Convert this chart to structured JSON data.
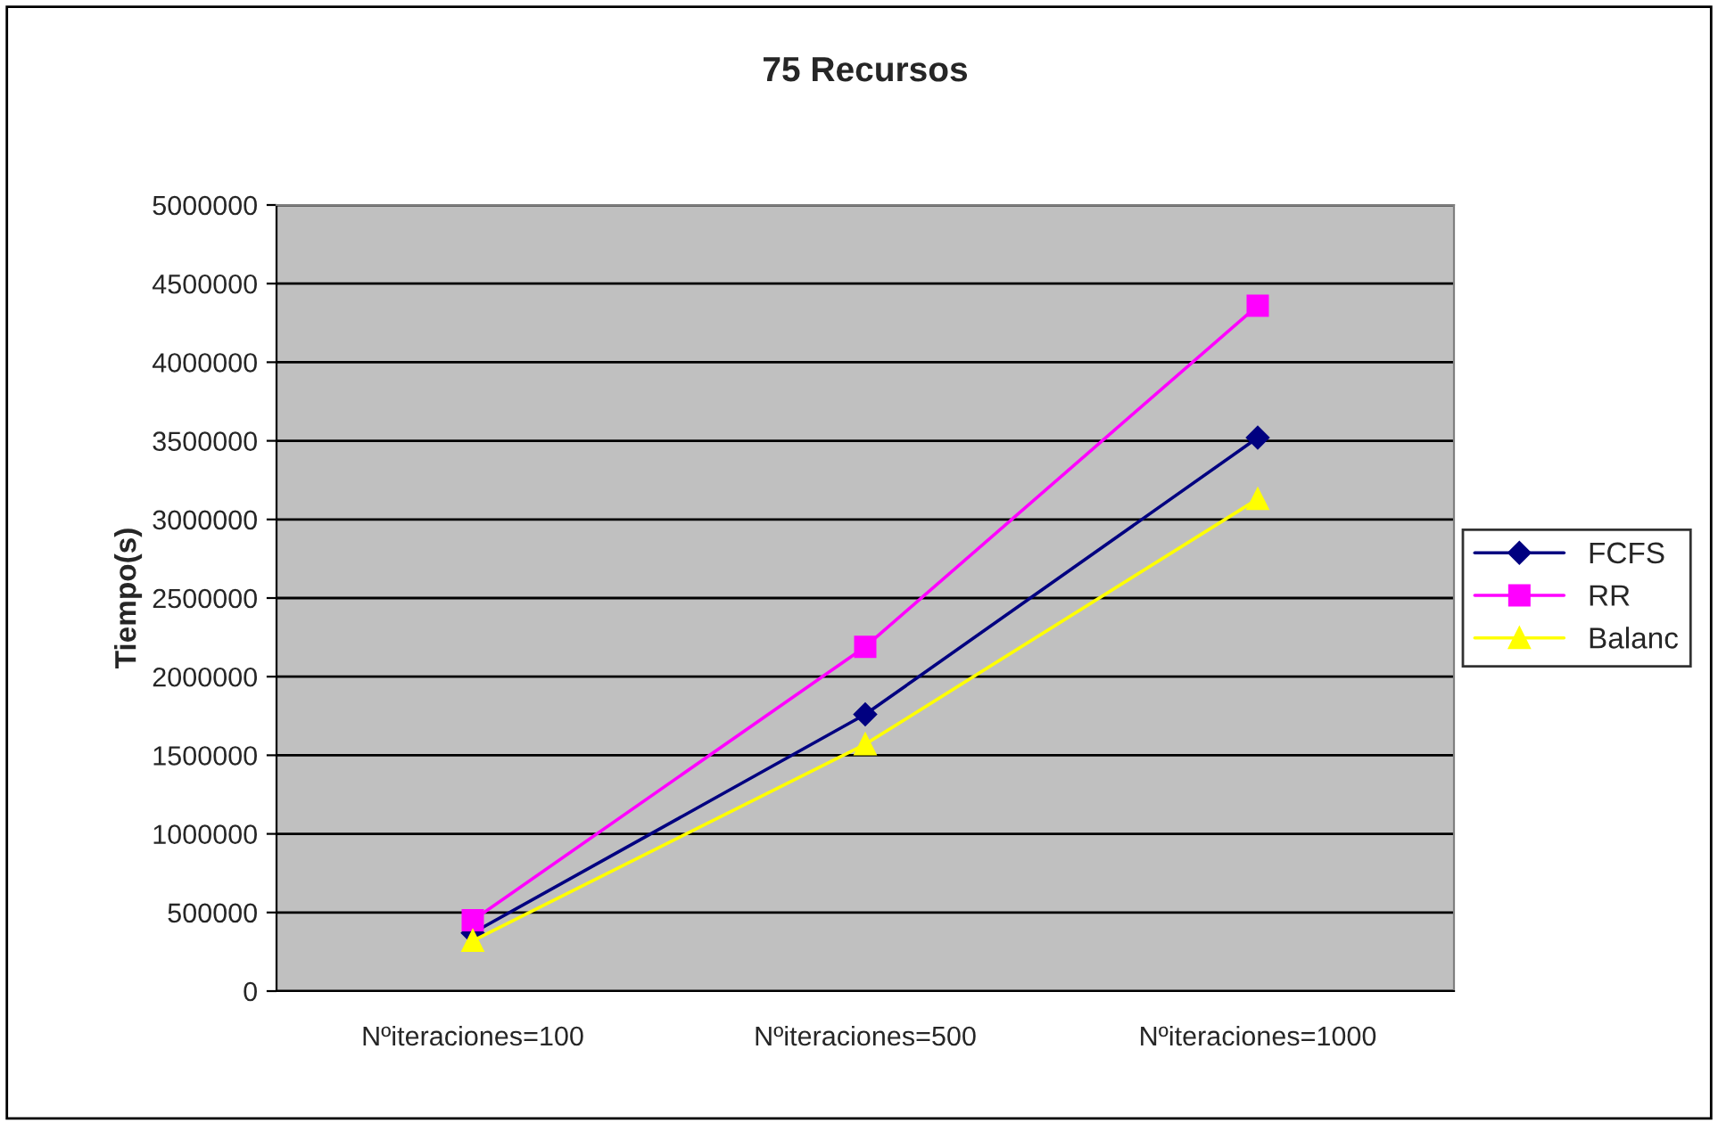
{
  "chart_data": {
    "type": "line",
    "title": "75 Recursos",
    "ylabel": "Tiempo(s)",
    "categories": [
      "Nºiteraciones=100",
      "Nºiteraciones=500",
      "Nºiteraciones=1000"
    ],
    "series": [
      {
        "name": "FCFS",
        "color": "#000080",
        "marker": "diamond",
        "values": [
          370000,
          1760000,
          3520000
        ]
      },
      {
        "name": "RR",
        "color": "#ff00ff",
        "marker": "square",
        "values": [
          450000,
          2190000,
          4360000
        ]
      },
      {
        "name": "Balanc",
        "color": "#ffff00",
        "marker": "triangle",
        "values": [
          320000,
          1570000,
          3130000
        ]
      }
    ],
    "ylim": [
      0,
      5000000
    ],
    "yticks": [
      0,
      500000,
      1000000,
      1500000,
      2000000,
      2500000,
      3000000,
      3500000,
      4000000,
      4500000,
      5000000
    ],
    "grid": "y",
    "legend": "right"
  }
}
